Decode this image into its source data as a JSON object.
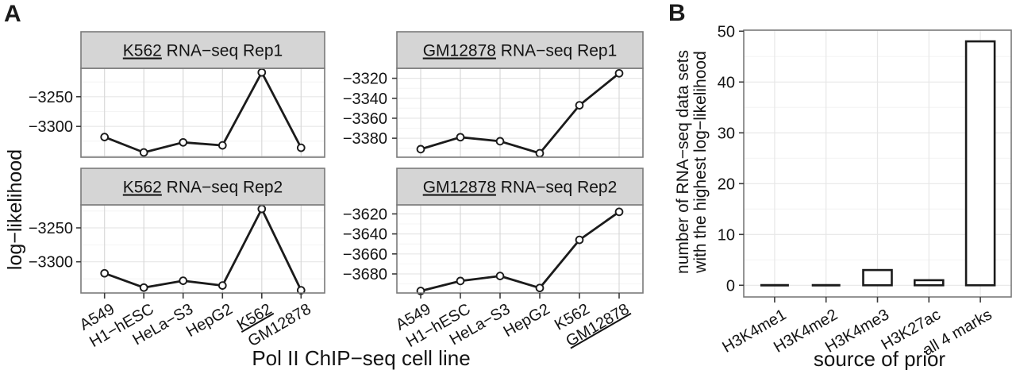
{
  "panels": {
    "a_label": "A",
    "b_label": "B",
    "a_ylabel": "log−likelihood",
    "a_xlabel": "Pol II ChIP−seq cell line",
    "b_xlabel": "source of prior",
    "b_ylabel_line1": "number of RNA−seq data sets",
    "b_ylabel_line2": "with the highest log−likelihood"
  },
  "colors": {
    "strip_bg": "#d5d5d5",
    "border": "#7a7a7a",
    "grid_major": "#e7e7e7",
    "grid_minor": "#f4f4f4",
    "grid_vertical": "#d9d9d9",
    "tick": "#3a3a3a",
    "line": "#1b1b1b",
    "text": "#141414",
    "point_fill": "#ffffff",
    "bar_fill": "#ffffff"
  },
  "chart_data": [
    {
      "id": "k562_rep1",
      "type": "line",
      "title": "K562 RNA−seq Rep1",
      "title_cell_line": "K562",
      "title_rest": " RNA−seq Rep1",
      "categories": [
        "A549",
        "H1−hESC",
        "HeLa−S3",
        "HepG2",
        "K562",
        "GM12878"
      ],
      "underlined_category": "K562",
      "values": [
        -3318,
        -3344,
        -3327,
        -3332,
        -3209,
        -3336
      ],
      "ylim": [
        -3352,
        -3202
      ],
      "yticks": [
        -3250,
        -3300
      ]
    },
    {
      "id": "k562_rep2",
      "type": "line",
      "title": "K562 RNA−seq Rep2",
      "title_cell_line": "K562",
      "title_rest": " RNA−seq Rep2",
      "categories": [
        "A549",
        "H1−hESC",
        "HeLa−S3",
        "HepG2",
        "K562",
        "GM12878"
      ],
      "underlined_category": "K562",
      "values": [
        -3317,
        -3338,
        -3328,
        -3335,
        -3222,
        -3342
      ],
      "ylim": [
        -3346,
        -3216
      ],
      "yticks": [
        -3250,
        -3300
      ]
    },
    {
      "id": "gm12878_rep1",
      "type": "line",
      "title": "GM12878 RNA−seq Rep1",
      "title_cell_line": "GM12878",
      "title_rest": " RNA−seq Rep1",
      "categories": [
        "A549",
        "H1−hESC",
        "HeLa−S3",
        "HepG2",
        "K562",
        "GM12878"
      ],
      "underlined_category": "GM12878",
      "values": [
        -3391,
        -3379,
        -3383,
        -3395,
        -3347,
        -3315
      ],
      "ylim": [
        -3399,
        -3310
      ],
      "yticks": [
        -3320,
        -3340,
        -3360,
        -3380
      ]
    },
    {
      "id": "gm12878_rep2",
      "type": "line",
      "title": "GM12878 RNA−seq Rep2",
      "title_cell_line": "GM12878",
      "title_rest": " RNA−seq Rep2",
      "categories": [
        "A549",
        "H1−hESC",
        "HeLa−S3",
        "HepG2",
        "K562",
        "GM12878"
      ],
      "underlined_category": "GM12878",
      "values": [
        -3697,
        -3687,
        -3682,
        -3694,
        -3646,
        -3618
      ],
      "ylim": [
        -3699,
        -3611
      ],
      "yticks": [
        -3620,
        -3640,
        -3660,
        -3680
      ]
    },
    {
      "id": "prior_bars",
      "type": "bar",
      "title": "",
      "xlabel": "source of prior",
      "ylabel": "number of RNA−seq data sets with the highest log−likelihood",
      "categories": [
        "H3K4me1",
        "H3K4me2",
        "H3K4me3",
        "H3K27ac",
        "all 4 marks"
      ],
      "underlined_category": "",
      "values": [
        0,
        0,
        3,
        1,
        48
      ],
      "ylim": [
        -2.3,
        50.2
      ],
      "yticks": [
        0,
        10,
        20,
        30,
        40,
        50
      ]
    }
  ]
}
